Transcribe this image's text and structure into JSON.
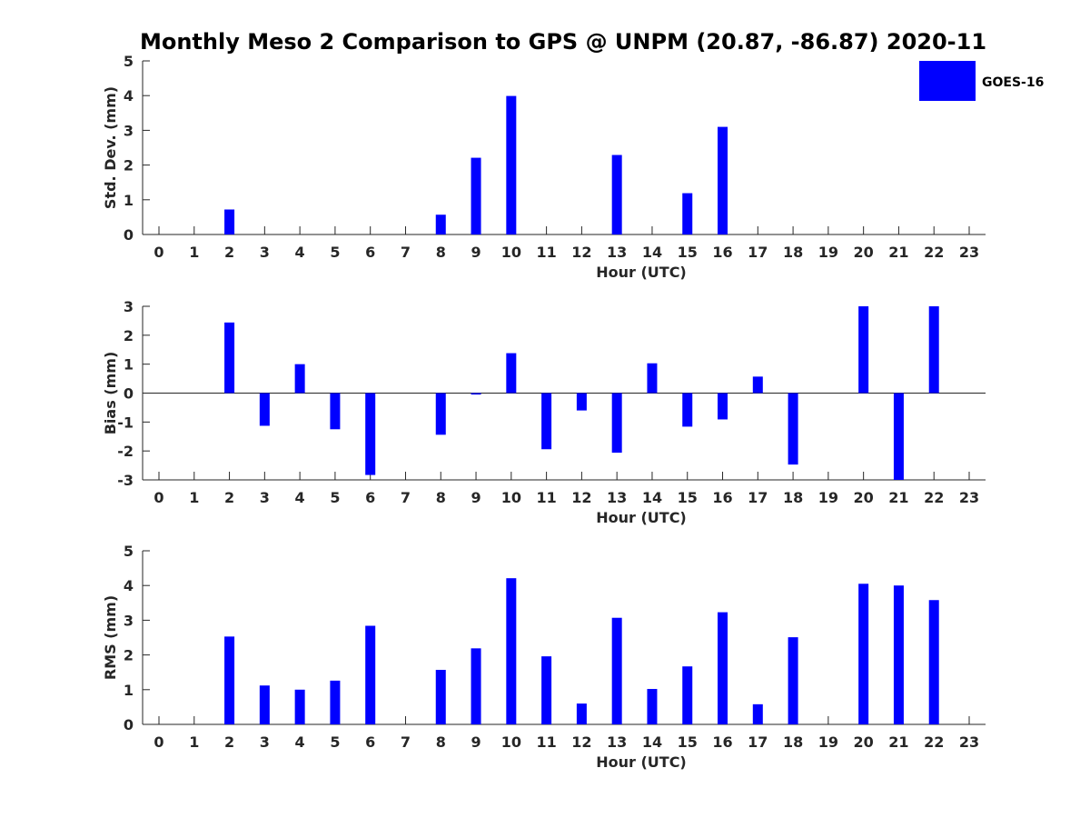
{
  "title": "Monthly Meso 2 Comparison to GPS @ UNPM (20.87, -86.87) 2020-11",
  "legend": {
    "label": "GOES-16",
    "color": "#0000ff"
  },
  "bar_color": "#0000ff",
  "chart_data": [
    {
      "type": "bar",
      "xlabel": "Hour (UTC)",
      "ylabel": "Std. Dev. (mm)",
      "ylim": [
        0,
        5
      ],
      "yticks": [
        0,
        1,
        2,
        3,
        4,
        5
      ],
      "categories": [
        "0",
        "1",
        "2",
        "3",
        "4",
        "5",
        "6",
        "7",
        "8",
        "9",
        "10",
        "11",
        "12",
        "13",
        "14",
        "15",
        "16",
        "17",
        "18",
        "19",
        "20",
        "21",
        "22",
        "23"
      ],
      "series": [
        {
          "name": "GOES-16",
          "values": [
            null,
            null,
            0.72,
            null,
            null,
            null,
            null,
            null,
            0.57,
            2.21,
            3.99,
            null,
            null,
            2.29,
            null,
            1.19,
            3.1,
            null,
            null,
            null,
            null,
            null,
            null,
            null
          ]
        }
      ],
      "legend_position": "top-right"
    },
    {
      "type": "bar",
      "xlabel": "Hour (UTC)",
      "ylabel": "Bias (mm)",
      "ylim": [
        -3,
        3
      ],
      "yticks": [
        -3,
        -2,
        -1,
        0,
        1,
        2,
        3
      ],
      "categories": [
        "0",
        "1",
        "2",
        "3",
        "4",
        "5",
        "6",
        "7",
        "8",
        "9",
        "10",
        "11",
        "12",
        "13",
        "14",
        "15",
        "16",
        "17",
        "18",
        "19",
        "20",
        "21",
        "22",
        "23"
      ],
      "series": [
        {
          "name": "GOES-16",
          "values": [
            null,
            null,
            2.44,
            -1.13,
            1.0,
            -1.25,
            -2.83,
            null,
            -1.44,
            -0.05,
            1.38,
            -1.94,
            -0.6,
            -2.06,
            1.03,
            -1.16,
            -0.91,
            0.57,
            -2.47,
            null,
            3.0,
            -3.0,
            3.0,
            null
          ]
        }
      ]
    },
    {
      "type": "bar",
      "xlabel": "Hour (UTC)",
      "ylabel": "RMS (mm)",
      "ylim": [
        0,
        5
      ],
      "yticks": [
        0,
        1,
        2,
        3,
        4,
        5
      ],
      "categories": [
        "0",
        "1",
        "2",
        "3",
        "4",
        "5",
        "6",
        "7",
        "8",
        "9",
        "10",
        "11",
        "12",
        "13",
        "14",
        "15",
        "16",
        "17",
        "18",
        "19",
        "20",
        "21",
        "22",
        "23"
      ],
      "series": [
        {
          "name": "GOES-16",
          "values": [
            null,
            null,
            2.53,
            1.12,
            1.0,
            1.26,
            2.84,
            null,
            1.57,
            2.19,
            4.21,
            1.96,
            0.6,
            3.07,
            1.02,
            1.67,
            3.23,
            0.58,
            2.51,
            null,
            4.05,
            4.0,
            3.58,
            null
          ]
        }
      ]
    }
  ]
}
